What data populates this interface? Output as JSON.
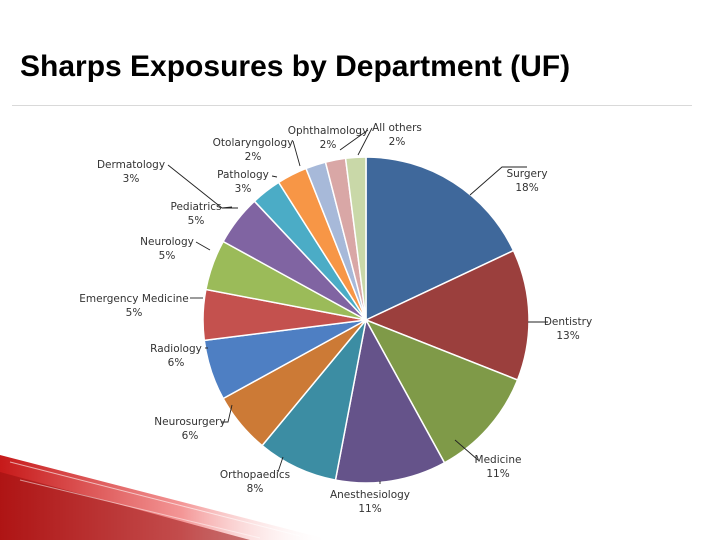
{
  "title": "Sharps Exposures by Department (UF)",
  "chart_data": {
    "type": "pie",
    "title": "Sharps Exposures by Department (UF)",
    "slices": [
      {
        "name": "Surgery",
        "value": 18,
        "pct": "18%",
        "color": "#3f689b"
      },
      {
        "name": "Dentistry",
        "value": 13,
        "pct": "13%",
        "color": "#9b3f3d"
      },
      {
        "name": "Medicine",
        "value": 11,
        "pct": "11%",
        "color": "#7f9a48"
      },
      {
        "name": "Anesthesiology",
        "value": 11,
        "pct": "11%",
        "color": "#65538a"
      },
      {
        "name": "Orthopaedics",
        "value": 8,
        "pct": "8%",
        "color": "#3c8da3"
      },
      {
        "name": "Neurosurgery",
        "value": 6,
        "pct": "6%",
        "color": "#cc7a36"
      },
      {
        "name": "Radiology",
        "value": 6,
        "pct": "6%",
        "color": "#4e7fc3"
      },
      {
        "name": "Emergency Medicine",
        "value": 5,
        "pct": "5%",
        "color": "#c4514e"
      },
      {
        "name": "Neurology",
        "value": 5,
        "pct": "5%",
        "color": "#9bbb59"
      },
      {
        "name": "Pediatrics",
        "value": 5,
        "pct": "5%",
        "color": "#8064a2"
      },
      {
        "name": "Dermatology",
        "value": 3,
        "pct": "3%",
        "color": "#4bacc6"
      },
      {
        "name": "Pathology",
        "value": 3,
        "pct": "3%",
        "color": "#f79646"
      },
      {
        "name": "Otolaryngology",
        "value": 2,
        "pct": "2%",
        "color": "#a7b9d9"
      },
      {
        "name": "Ophthalmology",
        "value": 2,
        "pct": "2%",
        "color": "#d9a7a6"
      },
      {
        "name": "All others",
        "value": 2,
        "pct": "2%",
        "color": "#c9d8a8"
      }
    ]
  }
}
